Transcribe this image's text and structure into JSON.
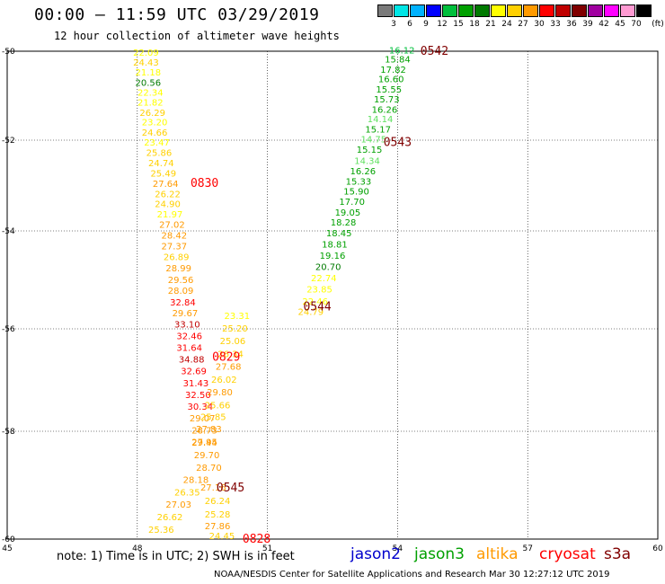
{
  "title": "00:00 – 11:59 UTC 03/29/2019",
  "subtitle": "12 hour collection of altimeter wave heights",
  "legend": {
    "unit": "(ft)",
    "bins": [
      {
        "label": "3",
        "color": "#7a7a7a"
      },
      {
        "label": "6",
        "color": "#00e5e5"
      },
      {
        "label": "9",
        "color": "#00b2ff"
      },
      {
        "label": "12",
        "color": "#0000ff"
      },
      {
        "label": "15",
        "color": "#00bf3c"
      },
      {
        "label": "18",
        "color": "#00a000"
      },
      {
        "label": "21",
        "color": "#007a00"
      },
      {
        "label": "24",
        "color": "#ffff00"
      },
      {
        "label": "27",
        "color": "#ffd000"
      },
      {
        "label": "30",
        "color": "#ff9a00"
      },
      {
        "label": "33",
        "color": "#ff0000"
      },
      {
        "label": "36",
        "color": "#c00000"
      },
      {
        "label": "39",
        "color": "#800000"
      },
      {
        "label": "42",
        "color": "#a000a0"
      },
      {
        "label": "45",
        "color": "#ff00ff"
      },
      {
        "label": "70",
        "color": "#ff9ad2"
      },
      {
        "label": "",
        "color": "#000000"
      }
    ]
  },
  "axes": {
    "x_ticks": [
      "45",
      "48",
      "51",
      "54",
      "57",
      "60"
    ],
    "y_ticks": [
      "-50",
      "-52",
      "-54",
      "-56",
      "-58",
      "-60"
    ]
  },
  "tracks": [
    {
      "name": "track-west",
      "readings": [
        {
          "v": "22.09",
          "lat": -50.1,
          "lon": 48.2,
          "c": "#ffff00"
        },
        {
          "v": "24.43",
          "lat": -50.32,
          "lon": 48.2,
          "c": "#ffd000"
        },
        {
          "v": "21.18",
          "lat": -50.55,
          "lon": 48.25,
          "c": "#ffff00"
        },
        {
          "v": "20.56",
          "lat": -50.78,
          "lon": 48.25,
          "c": "#007a00"
        },
        {
          "v": "22.34",
          "lat": -51.0,
          "lon": 48.3,
          "c": "#ffff00"
        },
        {
          "v": "21.82",
          "lat": -51.22,
          "lon": 48.3,
          "c": "#ffff00"
        },
        {
          "v": "26.29",
          "lat": -51.45,
          "lon": 48.35,
          "c": "#ffd000"
        },
        {
          "v": "23.20",
          "lat": -51.67,
          "lon": 48.4,
          "c": "#ffff00"
        },
        {
          "v": "24.66",
          "lat": -51.9,
          "lon": 48.4,
          "c": "#ffd000"
        },
        {
          "v": "23.47",
          "lat": -52.12,
          "lon": 48.45,
          "c": "#ffff00"
        },
        {
          "v": "25.86",
          "lat": -52.35,
          "lon": 48.5,
          "c": "#ffd000"
        },
        {
          "v": "24.74",
          "lat": -52.57,
          "lon": 48.55,
          "c": "#ffd000"
        },
        {
          "v": "25.49",
          "lat": -52.8,
          "lon": 48.6,
          "c": "#ffd000"
        },
        {
          "v": "27.64",
          "lat": -53.03,
          "lon": 48.65,
          "c": "#ff9a00"
        },
        {
          "v": "26.22",
          "lat": -53.26,
          "lon": 48.7,
          "c": "#ffd000"
        },
        {
          "v": "24.90",
          "lat": -53.48,
          "lon": 48.7,
          "c": "#ffd000"
        },
        {
          "v": "21.97",
          "lat": -53.7,
          "lon": 48.75,
          "c": "#ffff00"
        },
        {
          "v": "27.02",
          "lat": -53.93,
          "lon": 48.8,
          "c": "#ff9a00"
        },
        {
          "v": "28.42",
          "lat": -54.16,
          "lon": 48.85,
          "c": "#ff9a00"
        },
        {
          "v": "27.37",
          "lat": -54.38,
          "lon": 48.85,
          "c": "#ff9a00"
        },
        {
          "v": "26.89",
          "lat": -54.6,
          "lon": 48.9,
          "c": "#ffd000"
        },
        {
          "v": "28.99",
          "lat": -54.83,
          "lon": 48.95,
          "c": "#ff9a00"
        },
        {
          "v": "29.56",
          "lat": -55.06,
          "lon": 49.0,
          "c": "#ff9a00"
        },
        {
          "v": "28.09",
          "lat": -55.28,
          "lon": 49.0,
          "c": "#ff9a00"
        },
        {
          "v": "32.84",
          "lat": -55.52,
          "lon": 49.05,
          "c": "#ff0000"
        },
        {
          "v": "29.67",
          "lat": -55.74,
          "lon": 49.1,
          "c": "#ff9a00"
        },
        {
          "v": "33.10",
          "lat": -55.97,
          "lon": 49.15,
          "c": "#c00000"
        },
        {
          "v": "32.46",
          "lat": -56.2,
          "lon": 49.2,
          "c": "#ff0000"
        },
        {
          "v": "31.64",
          "lat": -56.43,
          "lon": 49.2,
          "c": "#ff0000"
        },
        {
          "v": "34.88",
          "lat": -56.66,
          "lon": 49.25,
          "c": "#c00000"
        },
        {
          "v": "32.69",
          "lat": -56.89,
          "lon": 49.3,
          "c": "#ff0000"
        },
        {
          "v": "31.43",
          "lat": -57.12,
          "lon": 49.35,
          "c": "#ff0000"
        },
        {
          "v": "32.50",
          "lat": -57.35,
          "lon": 49.4,
          "c": "#ff0000"
        },
        {
          "v": "30.34",
          "lat": -57.58,
          "lon": 49.45,
          "c": "#ff0000"
        },
        {
          "v": "29.07",
          "lat": -57.81,
          "lon": 49.5,
          "c": "#ff9a00"
        },
        {
          "v": "28.73",
          "lat": -58.04,
          "lon": 49.55,
          "c": "#ff9a00"
        },
        {
          "v": "29.44",
          "lat": -58.27,
          "lon": 49.55,
          "c": "#ff9a00"
        },
        {
          "v": "29.70",
          "lat": -58.5,
          "lon": 49.6,
          "c": "#ff9a00"
        },
        {
          "v": "28.70",
          "lat": -58.73,
          "lon": 49.65,
          "c": "#ff9a00"
        },
        {
          "v": "28.18",
          "lat": -58.96,
          "lon": 49.35,
          "c": "#ff9a00"
        },
        {
          "v": "26.35",
          "lat": -59.19,
          "lon": 49.15,
          "c": "#ffd000"
        },
        {
          "v": "27.03",
          "lat": -59.42,
          "lon": 48.95,
          "c": "#ff9a00"
        },
        {
          "v": "26.62",
          "lat": -59.65,
          "lon": 48.75,
          "c": "#ffd000"
        },
        {
          "v": "25.36",
          "lat": -59.88,
          "lon": 48.55,
          "c": "#ffd000"
        }
      ]
    },
    {
      "name": "track-middle",
      "readings": [
        {
          "v": "23.31",
          "lat": -55.8,
          "lon": 50.3,
          "c": "#ffff00"
        },
        {
          "v": "25.20",
          "lat": -56.05,
          "lon": 50.25,
          "c": "#ffd000"
        },
        {
          "v": "25.06",
          "lat": -56.3,
          "lon": 50.2,
          "c": "#ffd000"
        },
        {
          "v": "26.34",
          "lat": -56.55,
          "lon": 50.15,
          "c": "#ffd000"
        },
        {
          "v": "27.68",
          "lat": -56.8,
          "lon": 50.1,
          "c": "#ff9a00"
        },
        {
          "v": "26.02",
          "lat": -57.05,
          "lon": 50.0,
          "c": "#ffd000"
        },
        {
          "v": "29.80",
          "lat": -57.3,
          "lon": 49.9,
          "c": "#ff9a00"
        },
        {
          "v": "25.66",
          "lat": -57.55,
          "lon": 49.85,
          "c": "#ffd000"
        },
        {
          "v": "25.85",
          "lat": -57.78,
          "lon": 49.75,
          "c": "#ffd000"
        },
        {
          "v": "27.83",
          "lat": -58.02,
          "lon": 49.65,
          "c": "#ff9a00"
        },
        {
          "v": "27.95",
          "lat": -58.26,
          "lon": 49.55,
          "c": "#ff9a00"
        },
        {
          "v": "27.16",
          "lat": -59.1,
          "lon": 49.75,
          "c": "#ff9a00"
        },
        {
          "v": "26.24",
          "lat": -59.35,
          "lon": 49.85,
          "c": "#ffd000"
        },
        {
          "v": "25.28",
          "lat": -59.6,
          "lon": 49.85,
          "c": "#ffd000"
        },
        {
          "v": "27.86",
          "lat": -59.82,
          "lon": 49.85,
          "c": "#ff9a00"
        },
        {
          "v": "24.45",
          "lat": -60.02,
          "lon": 49.95,
          "c": "#ffd000"
        }
      ]
    },
    {
      "name": "track-east",
      "readings": [
        {
          "v": "16.12",
          "lat": -50.05,
          "lon": 54.1,
          "c": "#00bf3c"
        },
        {
          "v": "15.84",
          "lat": -50.25,
          "lon": 54.0,
          "c": "#00a000"
        },
        {
          "v": "17.82",
          "lat": -50.48,
          "lon": 53.9,
          "c": "#00a000"
        },
        {
          "v": "16.60",
          "lat": -50.7,
          "lon": 53.85,
          "c": "#00a000"
        },
        {
          "v": "15.55",
          "lat": -50.93,
          "lon": 53.8,
          "c": "#00a000"
        },
        {
          "v": "15.73",
          "lat": -51.15,
          "lon": 53.75,
          "c": "#00a000"
        },
        {
          "v": "16.26",
          "lat": -51.38,
          "lon": 53.7,
          "c": "#00a000"
        },
        {
          "v": "14.14",
          "lat": -51.6,
          "lon": 53.6,
          "c": "#5fe05f"
        },
        {
          "v": "15.17",
          "lat": -51.83,
          "lon": 53.55,
          "c": "#00a000"
        },
        {
          "v": "14.75",
          "lat": -52.05,
          "lon": 53.45,
          "c": "#5fe05f"
        },
        {
          "v": "15.15",
          "lat": -52.28,
          "lon": 53.35,
          "c": "#00a000"
        },
        {
          "v": "14.34",
          "lat": -52.52,
          "lon": 53.3,
          "c": "#5fe05f"
        },
        {
          "v": "16.26",
          "lat": -52.75,
          "lon": 53.2,
          "c": "#00a000"
        },
        {
          "v": "15.33",
          "lat": -52.98,
          "lon": 53.1,
          "c": "#00a000"
        },
        {
          "v": "15.90",
          "lat": -53.2,
          "lon": 53.05,
          "c": "#00a000"
        },
        {
          "v": "17.70",
          "lat": -53.43,
          "lon": 52.95,
          "c": "#00a000"
        },
        {
          "v": "19.05",
          "lat": -53.66,
          "lon": 52.85,
          "c": "#00a000"
        },
        {
          "v": "18.28",
          "lat": -53.88,
          "lon": 52.75,
          "c": "#00a000"
        },
        {
          "v": "18.45",
          "lat": -54.11,
          "lon": 52.65,
          "c": "#00a000"
        },
        {
          "v": "18.81",
          "lat": -54.34,
          "lon": 52.55,
          "c": "#00a000"
        },
        {
          "v": "19.16",
          "lat": -54.57,
          "lon": 52.5,
          "c": "#00a000"
        },
        {
          "v": "20.70",
          "lat": -54.8,
          "lon": 52.4,
          "c": "#007a00"
        },
        {
          "v": "22.74",
          "lat": -55.03,
          "lon": 52.3,
          "c": "#ffff00"
        },
        {
          "v": "23.85",
          "lat": -55.26,
          "lon": 52.2,
          "c": "#ffff00"
        },
        {
          "v": "22.46",
          "lat": -55.5,
          "lon": 52.1,
          "c": "#ffff00"
        },
        {
          "v": "24.79",
          "lat": -55.72,
          "lon": 52.0,
          "c": "#ffd000"
        }
      ]
    }
  ],
  "time_markers": [
    {
      "text": "0542",
      "lat": -50.0,
      "lon": 54.85,
      "c": "#800000"
    },
    {
      "text": "0543",
      "lat": -52.05,
      "lon": 54.0,
      "c": "#800000"
    },
    {
      "text": "0830",
      "lat": -52.95,
      "lon": 49.55,
      "c": "#ff0000"
    },
    {
      "text": "0544",
      "lat": -55.55,
      "lon": 52.15,
      "c": "#800000"
    },
    {
      "text": "0829",
      "lat": -56.55,
      "lon": 50.05,
      "c": "#ff0000"
    },
    {
      "text": "0545",
      "lat": -59.05,
      "lon": 50.15,
      "c": "#800000"
    },
    {
      "text": "0828",
      "lat": -60.05,
      "lon": 50.75,
      "c": "#ff0000"
    }
  ],
  "note": "note: 1) Time is in UTC; 2) SWH is in feet",
  "satellites": [
    {
      "name": "jason2",
      "color": "#0000cc"
    },
    {
      "name": "jason3",
      "color": "#00a000"
    },
    {
      "name": "altika",
      "color": "#ff9a00"
    },
    {
      "name": "cryosat",
      "color": "#ff0000"
    },
    {
      "name": "s3a",
      "color": "#800000"
    }
  ],
  "credit": "NOAA/NESDIS Center for Satellite Applications and Research   Mar 30 12:27:12 UTC 2019"
}
